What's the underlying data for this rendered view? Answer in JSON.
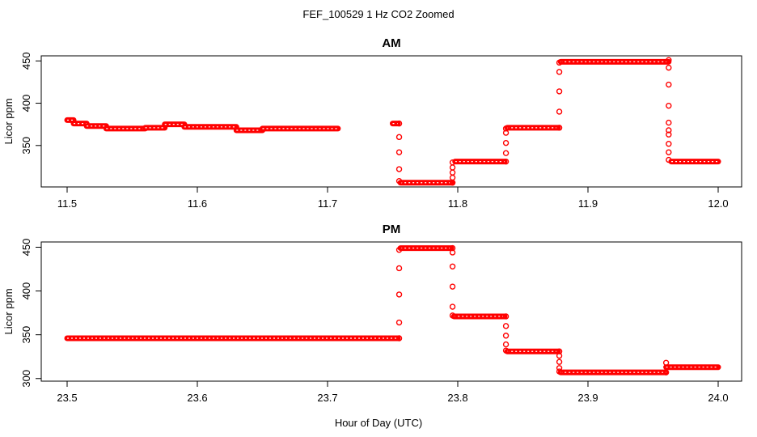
{
  "figure": {
    "title": "FEF_100529  1 Hz CO2 Zoomed",
    "xlabel": "Hour of Day (UTC)"
  },
  "chart_data": [
    {
      "type": "scatter",
      "title": "AM",
      "ylabel": "Licor ppm",
      "xlim": [
        11.5,
        12.0
      ],
      "ylim": [
        301,
        456
      ],
      "xticks": [
        "11.5",
        "11.6",
        "11.7",
        "11.8",
        "11.9",
        "12.0"
      ],
      "xtick_values": [
        11.5,
        11.6,
        11.7,
        11.8,
        11.9,
        12.0
      ],
      "yticks": [
        "350",
        "400",
        "450"
      ],
      "ytick_values": [
        350,
        400,
        450
      ],
      "point_color": "#ff0000",
      "segments": [
        {
          "x0": 11.5,
          "x1": 11.505,
          "y": 380
        },
        {
          "x0": 11.505,
          "x1": 11.515,
          "y": 376
        },
        {
          "x0": 11.515,
          "x1": 11.53,
          "y": 373
        },
        {
          "x0": 11.53,
          "x1": 11.56,
          "y": 370
        },
        {
          "x0": 11.56,
          "x1": 11.575,
          "y": 371
        },
        {
          "x0": 11.575,
          "x1": 11.59,
          "y": 375
        },
        {
          "x0": 11.59,
          "x1": 11.63,
          "y": 372
        },
        {
          "x0": 11.63,
          "x1": 11.65,
          "y": 368
        },
        {
          "x0": 11.65,
          "x1": 11.708,
          "y": 370
        },
        {
          "x0": 11.75,
          "x1": 11.754,
          "y": 376
        },
        {
          "x0": 11.756,
          "x1": 11.796,
          "y": 306
        },
        {
          "x0": 11.798,
          "x1": 11.836,
          "y": 331
        },
        {
          "x0": 11.838,
          "x1": 11.877,
          "y": 371
        },
        {
          "x0": 11.879,
          "x1": 11.962,
          "y": 449
        },
        {
          "x0": 11.964,
          "x1": 12.0,
          "y": 331
        }
      ],
      "transitions": [
        {
          "x": 11.755,
          "y": [
            376,
            360,
            342,
            322,
            308
          ]
        },
        {
          "x": 11.796,
          "y": [
            306,
            312,
            318,
            324,
            330
          ]
        },
        {
          "x": 11.837,
          "y": [
            331,
            341,
            353,
            365,
            370
          ]
        },
        {
          "x": 11.878,
          "y": [
            371,
            390,
            414,
            437,
            448
          ]
        },
        {
          "x": 11.962,
          "y": [
            451,
            442,
            422,
            397,
            377,
            368,
            363,
            352,
            342,
            333
          ]
        }
      ]
    },
    {
      "type": "scatter",
      "title": "PM",
      "ylabel": "Licor ppm",
      "xlim": [
        23.5,
        24.0
      ],
      "ylim": [
        297,
        456
      ],
      "xticks": [
        "23.5",
        "23.6",
        "23.7",
        "23.8",
        "23.9",
        "24.0"
      ],
      "xtick_values": [
        23.5,
        23.6,
        23.7,
        23.8,
        23.9,
        24.0
      ],
      "yticks": [
        "300",
        "350",
        "400",
        "450"
      ],
      "ytick_values": [
        300,
        350,
        400,
        450
      ],
      "point_color": "#ff0000",
      "segments": [
        {
          "x0": 23.5,
          "x1": 23.754,
          "y": 346
        },
        {
          "x0": 23.756,
          "x1": 23.795,
          "y": 449
        },
        {
          "x0": 23.797,
          "x1": 23.836,
          "y": 371
        },
        {
          "x0": 23.838,
          "x1": 23.877,
          "y": 331
        },
        {
          "x0": 23.879,
          "x1": 23.96,
          "y": 307
        },
        {
          "x0": 23.96,
          "x1": 24.0,
          "y": 313
        }
      ],
      "transitions": [
        {
          "x": 23.755,
          "y": [
            346,
            364,
            396,
            426,
            447
          ]
        },
        {
          "x": 23.796,
          "y": [
            449,
            444,
            428,
            405,
            382,
            372
          ]
        },
        {
          "x": 23.837,
          "y": [
            371,
            360,
            349,
            339,
            332
          ]
        },
        {
          "x": 23.878,
          "y": [
            331,
            326,
            319,
            312,
            308
          ]
        },
        {
          "x": 23.96,
          "y": [
            307,
            318
          ]
        }
      ]
    }
  ]
}
